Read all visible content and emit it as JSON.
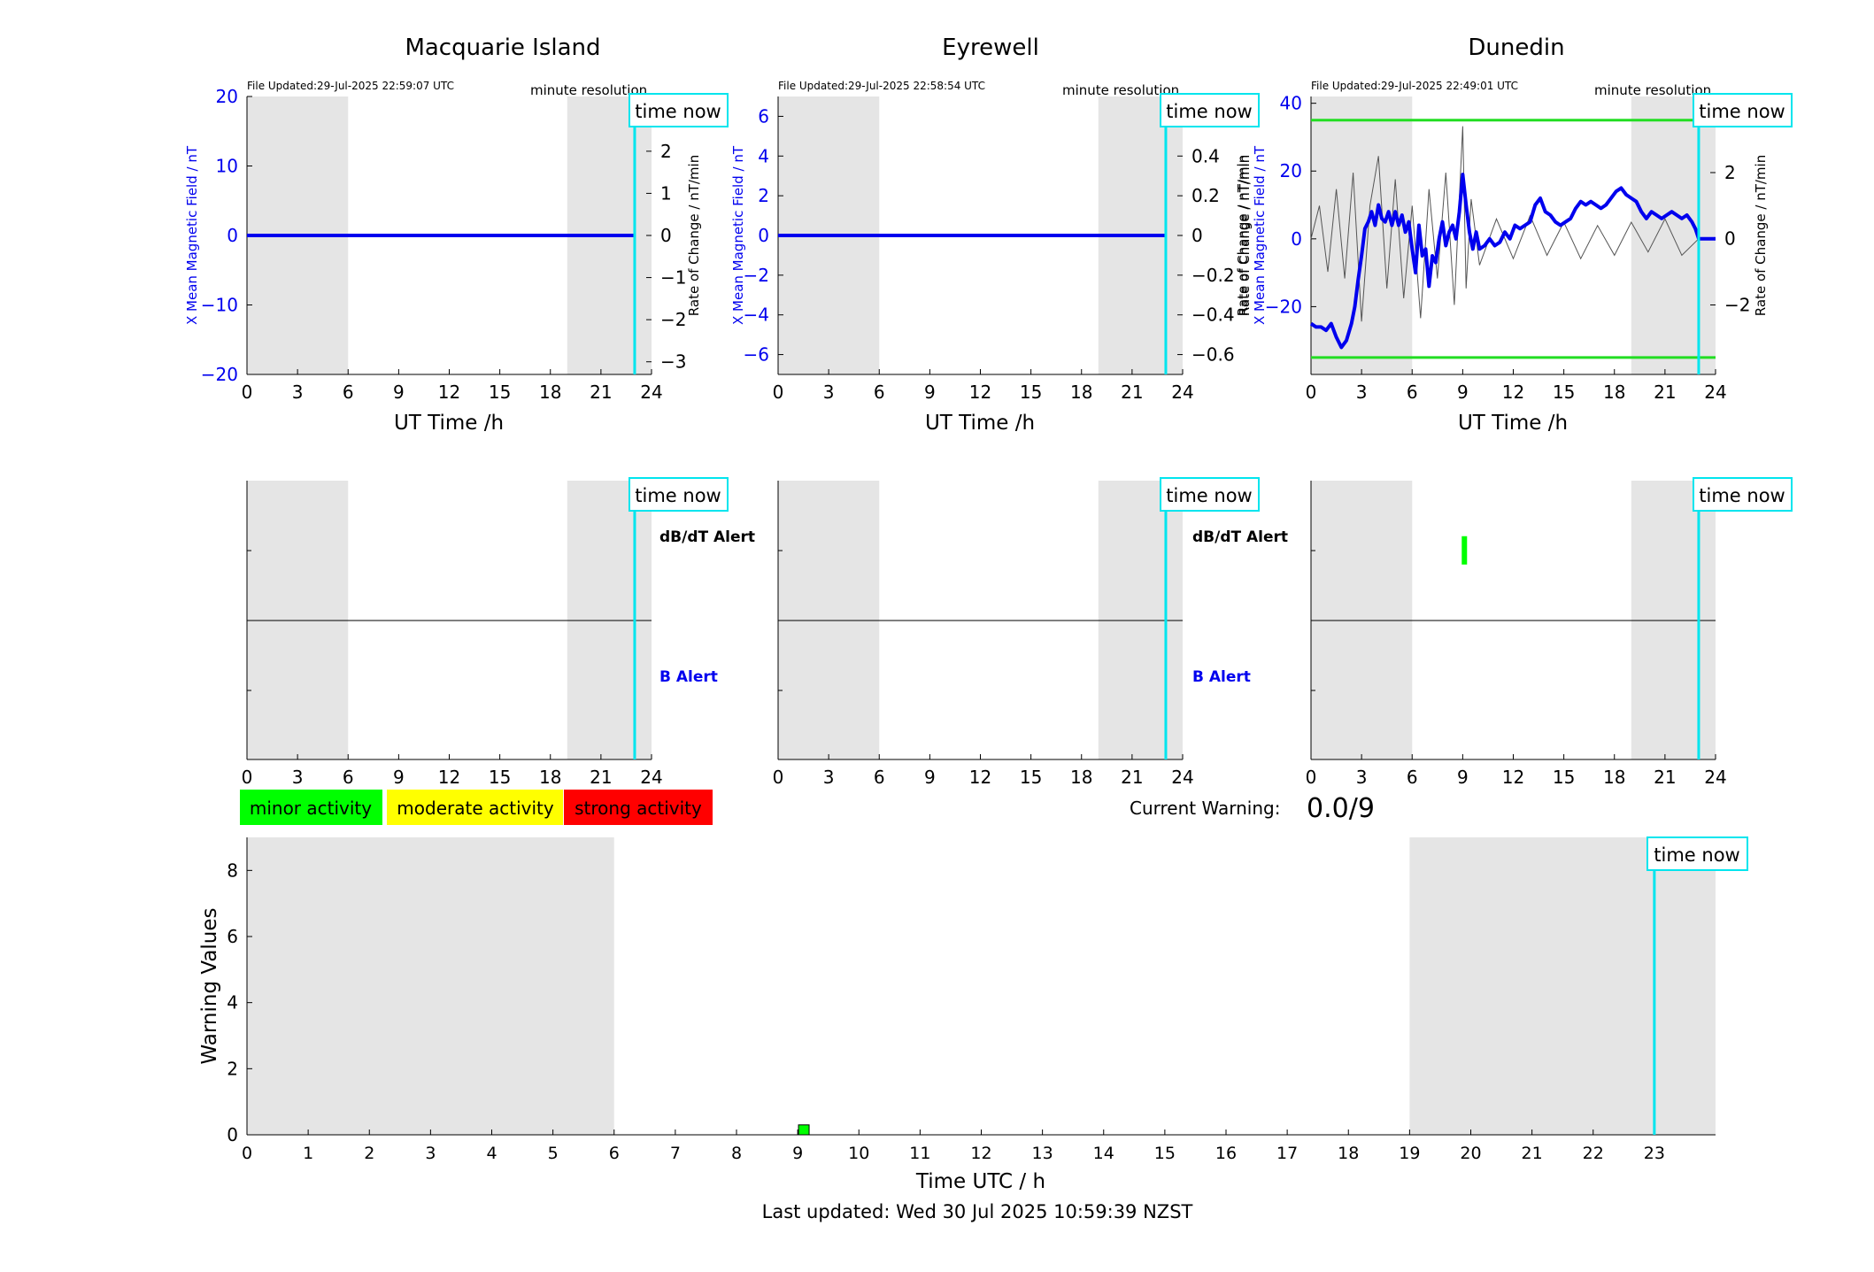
{
  "page": {
    "footer": "Last updated: Wed 30 Jul 2025 10:59:39 NZST"
  },
  "colors": {
    "bfield": "#0000ee",
    "rate": "#000000",
    "now_line": "#00e5ee",
    "night_shade": "#e5e5e5",
    "threshold": "#22dd22",
    "minor": "#00ff00",
    "moderate": "#ffff00",
    "strong": "#ff0000",
    "b_alert_label": "#0000ee",
    "dbdt_alert_label": "#000000"
  },
  "chart_data": [
    {
      "id": "macquarie",
      "type": "line",
      "title": "Macquarie Island",
      "file_updated": "File Updated:29-Jul-2025 22:59:07 UTC",
      "resolution": "minute resolution",
      "time_now_label": "time now",
      "time_now": 23.0,
      "xlabel": "UT Time /h",
      "ylabel": "X Mean Magnetic Field / nT",
      "y2label": "Rate of Change / nT/min",
      "xlim": [
        0,
        24
      ],
      "xticks": [
        0,
        3,
        6,
        9,
        12,
        15,
        18,
        21,
        24
      ],
      "ylim": [
        -20,
        20
      ],
      "yticks": [
        -20,
        -10,
        0,
        10,
        20
      ],
      "y2lim": [
        -3.3,
        3.3
      ],
      "y2ticks": [
        -3,
        -2,
        -1,
        0,
        1,
        2,
        3
      ],
      "night_intervals": [
        [
          0,
          6
        ],
        [
          19,
          24
        ]
      ],
      "series": [
        {
          "axis": "left",
          "x": [
            0,
            23
          ],
          "values": [
            0,
            0
          ]
        }
      ]
    },
    {
      "id": "eyrewell",
      "type": "line",
      "title": "Eyrewell",
      "file_updated": "File Updated:29-Jul-2025 22:58:54 UTC",
      "resolution": "minute resolution",
      "time_now_label": "time now",
      "time_now": 23.0,
      "xlabel": "UT Time /h",
      "ylabel": "X Mean Magnetic Field / nT",
      "y2label": "Rate of Change / nT/min",
      "xlim": [
        0,
        24
      ],
      "xticks": [
        0,
        3,
        6,
        9,
        12,
        15,
        18,
        21,
        24
      ],
      "ylim": [
        -7,
        7
      ],
      "yticks": [
        -6,
        -4,
        -2,
        0,
        2,
        4,
        6
      ],
      "y2lim": [
        -0.7,
        0.7
      ],
      "y2ticks": [
        -0.6,
        -0.4,
        -0.2,
        0,
        0.2,
        0.4,
        0.6
      ],
      "night_intervals": [
        [
          0,
          6
        ],
        [
          19,
          24
        ]
      ],
      "series": [
        {
          "axis": "left",
          "x": [
            0,
            23
          ],
          "values": [
            0,
            0
          ]
        }
      ]
    },
    {
      "id": "dunedin",
      "type": "line",
      "title": "Dunedin",
      "file_updated": "File Updated:29-Jul-2025 22:49:01 UTC",
      "resolution": "minute resolution",
      "time_now_label": "time now",
      "time_now": 23.0,
      "xlabel": "UT Time /h",
      "ylabel": "X Mean Magnetic Field / nT",
      "y2label": "Rate of Change / nT/min",
      "xlim": [
        0,
        24
      ],
      "xticks": [
        0,
        3,
        6,
        9,
        12,
        15,
        18,
        21,
        24
      ],
      "ylim": [
        -40,
        42
      ],
      "yticks": [
        -20,
        0,
        20,
        40
      ],
      "y2lim": [
        -4.1,
        4.3
      ],
      "y2ticks": [
        -2,
        0,
        2
      ],
      "night_intervals": [
        [
          0,
          6
        ],
        [
          19,
          24
        ]
      ],
      "thresholds": [
        35,
        -35
      ],
      "series": [
        {
          "axis": "left",
          "x": [
            0,
            0.3,
            0.6,
            0.9,
            1.2,
            1.5,
            1.8,
            2.1,
            2.4,
            2.6,
            2.8,
            3.0,
            3.2,
            3.4,
            3.6,
            3.8,
            4.0,
            4.2,
            4.4,
            4.6,
            4.8,
            5.0,
            5.2,
            5.4,
            5.6,
            5.8,
            6.0,
            6.2,
            6.4,
            6.6,
            6.8,
            7.0,
            7.2,
            7.4,
            7.6,
            7.8,
            8.0,
            8.2,
            8.4,
            8.6,
            8.8,
            9.0,
            9.2,
            9.4,
            9.6,
            9.8,
            10.0,
            10.3,
            10.6,
            10.9,
            11.2,
            11.5,
            11.8,
            12.1,
            12.4,
            12.7,
            13.0,
            13.3,
            13.6,
            13.9,
            14.2,
            14.5,
            14.8,
            15.1,
            15.4,
            15.7,
            16.0,
            16.3,
            16.6,
            16.9,
            17.2,
            17.5,
            17.8,
            18.1,
            18.4,
            18.7,
            19.0,
            19.3,
            19.6,
            19.9,
            20.2,
            20.5,
            20.8,
            21.1,
            21.4,
            21.7,
            22.0,
            22.3,
            22.6,
            22.8,
            23.0,
            24.0
          ],
          "values": [
            -25,
            -26,
            -26,
            -27,
            -25,
            -29,
            -32,
            -30,
            -25,
            -20,
            -12,
            -5,
            3,
            5,
            8,
            4,
            10,
            6,
            5,
            8,
            4,
            8,
            4,
            7,
            2,
            5,
            -3,
            -10,
            4,
            -5,
            -3,
            -14,
            -5,
            -7,
            0,
            5,
            -2,
            2,
            4,
            0,
            8,
            19,
            10,
            2,
            -3,
            2,
            -3,
            -2,
            0,
            -2,
            -1,
            2,
            0,
            4,
            3,
            4,
            5,
            10,
            12,
            8,
            7,
            5,
            4,
            5,
            6,
            9,
            11,
            10,
            11,
            10,
            9,
            10,
            12,
            14,
            15,
            13,
            12,
            11,
            8,
            6,
            8,
            7,
            6,
            7,
            8,
            7,
            6,
            7,
            5,
            3,
            0,
            0
          ]
        },
        {
          "axis": "right",
          "x": [
            0,
            0.5,
            1.0,
            1.5,
            2.0,
            2.5,
            3.0,
            3.5,
            4.0,
            4.5,
            5.0,
            5.5,
            6.0,
            6.5,
            7.0,
            7.5,
            8.0,
            8.5,
            9.0,
            9.2,
            9.5,
            10.0,
            11.0,
            12.0,
            13.0,
            14.0,
            15.0,
            16.0,
            17.0,
            18.0,
            19.0,
            20.0,
            21.0,
            22.0,
            23.0
          ],
          "values": [
            0,
            1,
            -1,
            1.5,
            -1.2,
            2,
            -2.5,
            1,
            2.5,
            -1.5,
            1.8,
            -1.8,
            1,
            -2.4,
            1.5,
            -1.2,
            2,
            -2,
            3.4,
            -1.5,
            1.2,
            -0.8,
            0.6,
            -0.6,
            0.7,
            -0.5,
            0.5,
            -0.6,
            0.4,
            -0.5,
            0.5,
            -0.4,
            0.6,
            -0.5,
            0
          ]
        }
      ]
    },
    {
      "id": "macquarie-alert",
      "type": "scatter",
      "time_now_label": "time now",
      "time_now": 23.0,
      "xlim": [
        0,
        24
      ],
      "xticks": [
        0,
        3,
        6,
        9,
        12,
        15,
        18,
        21,
        24
      ],
      "night_intervals": [
        [
          0,
          6
        ],
        [
          19,
          24
        ]
      ],
      "dbdt_label": "dB/dT Alert",
      "b_label": "B Alert",
      "dbdt_alert_times": [],
      "b_alert_times": []
    },
    {
      "id": "eyrewell-alert",
      "type": "scatter",
      "time_now_label": "time now",
      "time_now": 23.0,
      "xlim": [
        0,
        24
      ],
      "xticks": [
        0,
        3,
        6,
        9,
        12,
        15,
        18,
        21,
        24
      ],
      "night_intervals": [
        [
          0,
          6
        ],
        [
          19,
          24
        ]
      ],
      "dbdt_label": "dB/dT Alert",
      "b_label": "B Alert",
      "dbdt_alert_times": [],
      "b_alert_times": []
    },
    {
      "id": "dunedin-alert",
      "type": "scatter",
      "time_now_label": "time now",
      "time_now": 23.0,
      "xlim": [
        0,
        24
      ],
      "xticks": [
        0,
        3,
        6,
        9,
        12,
        15,
        18,
        21,
        24
      ],
      "night_intervals": [
        [
          0,
          6
        ],
        [
          19,
          24
        ]
      ],
      "dbdt_alert_times": [
        9.1
      ],
      "b_alert_times": []
    },
    {
      "id": "warning",
      "type": "bar",
      "xlabel": "Time UTC / h",
      "ylabel": "Warning Values",
      "xlim": [
        0,
        24
      ],
      "xticks": [
        0,
        1,
        2,
        3,
        4,
        5,
        6,
        7,
        8,
        9,
        10,
        11,
        12,
        13,
        14,
        15,
        16,
        17,
        18,
        19,
        20,
        21,
        22,
        23
      ],
      "ylim": [
        0,
        9
      ],
      "yticks": [
        0,
        2,
        4,
        6,
        8
      ],
      "night_intervals": [
        [
          0,
          6
        ],
        [
          19,
          24
        ]
      ],
      "time_now_label": "time now",
      "time_now": 23.0,
      "current_warning_label": "Current Warning:",
      "current_warning_value": "0.0/9",
      "legend": [
        "minor activity",
        "moderate activity",
        "strong activity"
      ],
      "bars": [
        {
          "x": 9.1,
          "value": 0.3,
          "level": "minor"
        }
      ]
    }
  ]
}
